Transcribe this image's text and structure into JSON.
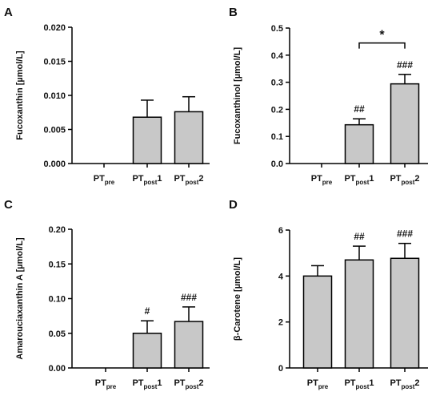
{
  "chart_data": [
    {
      "panel": "A",
      "type": "bar",
      "ylabel": "Fucoxanthin [µmol/L]",
      "ylim": [
        0,
        0.02
      ],
      "yticks": [
        0,
        0.005,
        0.01,
        0.015,
        0.02
      ],
      "ytick_labels": [
        "0.000",
        "0.005",
        "0.010",
        "0.015",
        "0.020"
      ],
      "categories": [
        {
          "main": "PT",
          "sub": "pre",
          "suffix": ""
        },
        {
          "main": "PT",
          "sub": "post",
          "suffix": "1"
        },
        {
          "main": "PT",
          "sub": "post",
          "suffix": "2"
        }
      ],
      "values": [
        0,
        0.0068,
        0.0076
      ],
      "errors": [
        0,
        0.0025,
        0.0022
      ],
      "annotations": [
        "",
        "",
        ""
      ],
      "bracket": null
    },
    {
      "panel": "B",
      "type": "bar",
      "ylabel": "Fucoxanthinol [µmol/L]",
      "ylim": [
        0,
        0.5
      ],
      "yticks": [
        0,
        0.1,
        0.2,
        0.3,
        0.4,
        0.5
      ],
      "ytick_labels": [
        "0.0",
        "0.1",
        "0.2",
        "0.3",
        "0.4",
        "0.5"
      ],
      "categories": [
        {
          "main": "PT",
          "sub": "pre",
          "suffix": ""
        },
        {
          "main": "PT",
          "sub": "post",
          "suffix": "1"
        },
        {
          "main": "PT",
          "sub": "post",
          "suffix": "2"
        }
      ],
      "values": [
        0,
        0.143,
        0.294
      ],
      "errors": [
        0,
        0.022,
        0.035
      ],
      "annotations": [
        "",
        "##",
        "###"
      ],
      "bracket": {
        "from": 1,
        "to": 2,
        "y": 0.445,
        "label": "*"
      }
    },
    {
      "panel": "C",
      "type": "bar",
      "ylabel": "Amarouciaxanthin A [µmol/L]",
      "ylim": [
        0,
        0.2
      ],
      "yticks": [
        0,
        0.05,
        0.1,
        0.15,
        0.2
      ],
      "ytick_labels": [
        "0.00",
        "0.05",
        "0.10",
        "0.15",
        "0.20"
      ],
      "categories": [
        {
          "main": "PT",
          "sub": "pre",
          "suffix": ""
        },
        {
          "main": "PT",
          "sub": "post",
          "suffix": "1"
        },
        {
          "main": "PT",
          "sub": "post",
          "suffix": "2"
        }
      ],
      "values": [
        0,
        0.05,
        0.067
      ],
      "errors": [
        0,
        0.018,
        0.021
      ],
      "annotations": [
        "",
        "#",
        "###"
      ],
      "bracket": null
    },
    {
      "panel": "D",
      "type": "bar",
      "ylabel": "β-Carotene [µmol/L]",
      "ylim": [
        0,
        6
      ],
      "yticks": [
        0,
        2,
        4,
        6
      ],
      "ytick_labels": [
        "0",
        "2",
        "4",
        "6"
      ],
      "categories": [
        {
          "main": "PT",
          "sub": "pre",
          "suffix": ""
        },
        {
          "main": "PT",
          "sub": "post",
          "suffix": "1"
        },
        {
          "main": "PT",
          "sub": "post",
          "suffix": "2"
        }
      ],
      "values": [
        4.0,
        4.7,
        4.77
      ],
      "errors": [
        0.45,
        0.6,
        0.65
      ],
      "annotations": [
        "",
        "##",
        "###"
      ],
      "bracket": null
    }
  ],
  "colors": {
    "bar_fill": "#c8c8c8",
    "stroke": "#000000"
  }
}
